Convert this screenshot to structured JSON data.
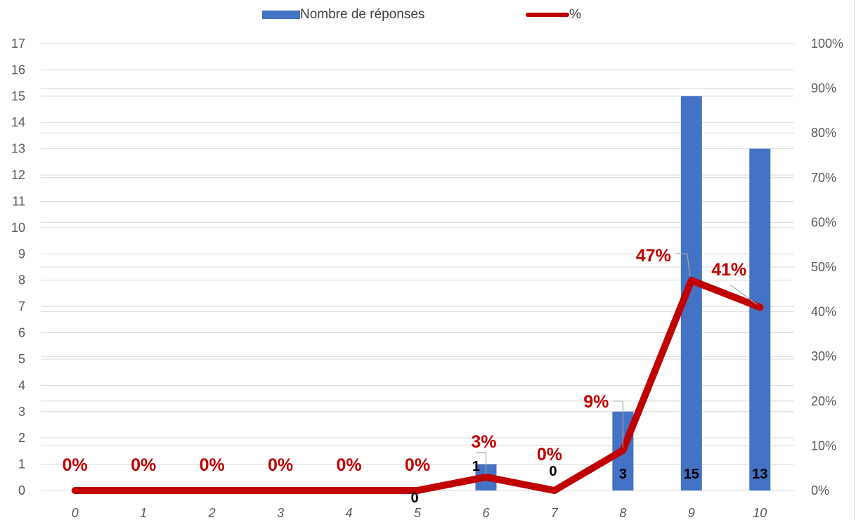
{
  "chart_data": {
    "type": "bar",
    "categories": [
      "0",
      "1",
      "2",
      "3",
      "4",
      "5",
      "6",
      "7",
      "8",
      "9",
      "10"
    ],
    "series": [
      {
        "name": "Nombre de réponses",
        "type": "bar",
        "axis": "left",
        "values": [
          0,
          0,
          0,
          0,
          0,
          0,
          1,
          0,
          3,
          15,
          13
        ],
        "labels": [
          "",
          "",
          "",
          "",
          "",
          "0",
          "1",
          "0",
          "3",
          "15",
          "13"
        ]
      },
      {
        "name": "%",
        "type": "line",
        "axis": "right",
        "values": [
          0,
          0,
          0,
          0,
          0,
          0,
          3,
          0,
          9,
          47,
          41
        ],
        "labels": [
          "0%",
          "0%",
          "0%",
          "0%",
          "0%",
          "0%",
          "3%",
          "0%",
          "9%",
          "47%",
          "41%"
        ]
      }
    ],
    "left_axis": {
      "ylim": [
        0,
        17
      ],
      "ticks": [
        "0",
        "1",
        "2",
        "3",
        "4",
        "5",
        "6",
        "7",
        "8",
        "9",
        "10",
        "11",
        "12",
        "13",
        "14",
        "15",
        "16",
        "17"
      ]
    },
    "right_axis": {
      "ylim": [
        0,
        100
      ],
      "ticks": [
        "0%",
        "10%",
        "20%",
        "30%",
        "40%",
        "50%",
        "60%",
        "70%",
        "80%",
        "90%",
        "100%"
      ]
    },
    "legend_position": "top",
    "grid": true,
    "colors": {
      "bar": "#4472C4",
      "line": "#C00000",
      "grid": "#d9d9d9",
      "axis_text": "#595959"
    }
  }
}
